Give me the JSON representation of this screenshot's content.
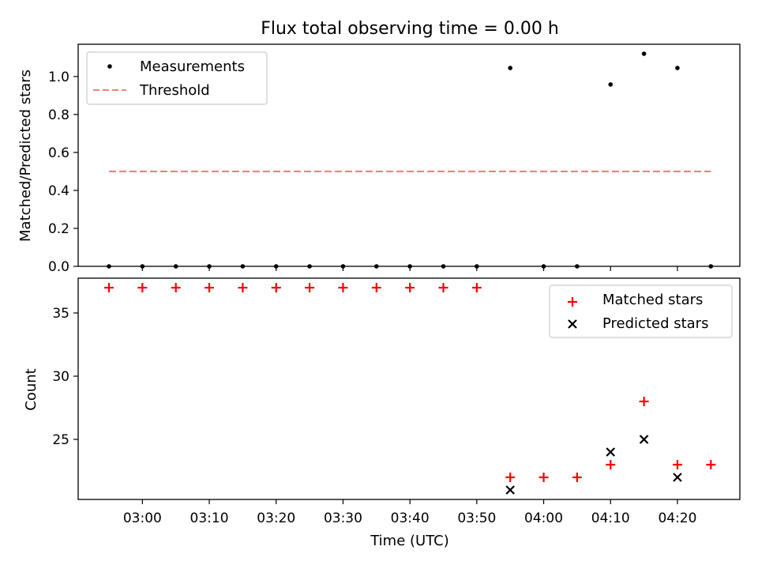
{
  "chart_data": [
    {
      "type": "scatter",
      "title": "Flux total observing time = 0.00 h",
      "xlabel": "",
      "ylabel": "Matched/Predicted stars",
      "ylim": [
        0,
        1.17
      ],
      "yticks": [
        "0.0",
        "0.2",
        "0.4",
        "0.6",
        "0.8",
        "1.0"
      ],
      "legend_position": "top-left",
      "series": [
        {
          "name": "Measurements",
          "marker": "dot",
          "color": "#000000",
          "x": [
            "02:55",
            "03:00",
            "03:05",
            "03:10",
            "03:15",
            "03:20",
            "03:25",
            "03:30",
            "03:35",
            "03:40",
            "03:45",
            "03:50",
            "03:55",
            "04:00",
            "04:05",
            "04:10",
            "04:15",
            "04:20",
            "04:25"
          ],
          "values": [
            0,
            0,
            0,
            0,
            0,
            0,
            0,
            0,
            0,
            0,
            0,
            0,
            1.045,
            0,
            0,
            0.958,
            1.12,
            1.045,
            0
          ]
        },
        {
          "name": "Threshold",
          "type": "line",
          "style": "dashed",
          "color": "#f08080",
          "x": [
            "02:55",
            "04:25"
          ],
          "values": [
            0.5,
            0.5
          ]
        }
      ]
    },
    {
      "type": "scatter",
      "xlabel": "Time (UTC)",
      "ylabel": "Count",
      "ylim": [
        20.5,
        37.5
      ],
      "yticks": [
        "25",
        "30",
        "35"
      ],
      "xticks": [
        "03:00",
        "03:10",
        "03:20",
        "03:30",
        "03:40",
        "03:50",
        "04:00",
        "04:10",
        "04:20"
      ],
      "legend_position": "top-right",
      "series": [
        {
          "name": "Matched stars",
          "marker": "plus",
          "color": "#ff0000",
          "x": [
            "02:55",
            "03:00",
            "03:05",
            "03:10",
            "03:15",
            "03:20",
            "03:25",
            "03:30",
            "03:35",
            "03:40",
            "03:45",
            "03:50",
            "03:55",
            "04:00",
            "04:05",
            "04:10",
            "04:15",
            "04:20",
            "04:25"
          ],
          "values": [
            37,
            37,
            37,
            37,
            37,
            37,
            37,
            37,
            37,
            37,
            37,
            37,
            22,
            22,
            22,
            23,
            28,
            23,
            23
          ]
        },
        {
          "name": "Predicted stars",
          "marker": "x",
          "color": "#000000",
          "x": [
            "03:55",
            "04:10",
            "04:15",
            "04:20"
          ],
          "values": [
            21,
            24,
            25,
            22
          ]
        }
      ]
    }
  ]
}
